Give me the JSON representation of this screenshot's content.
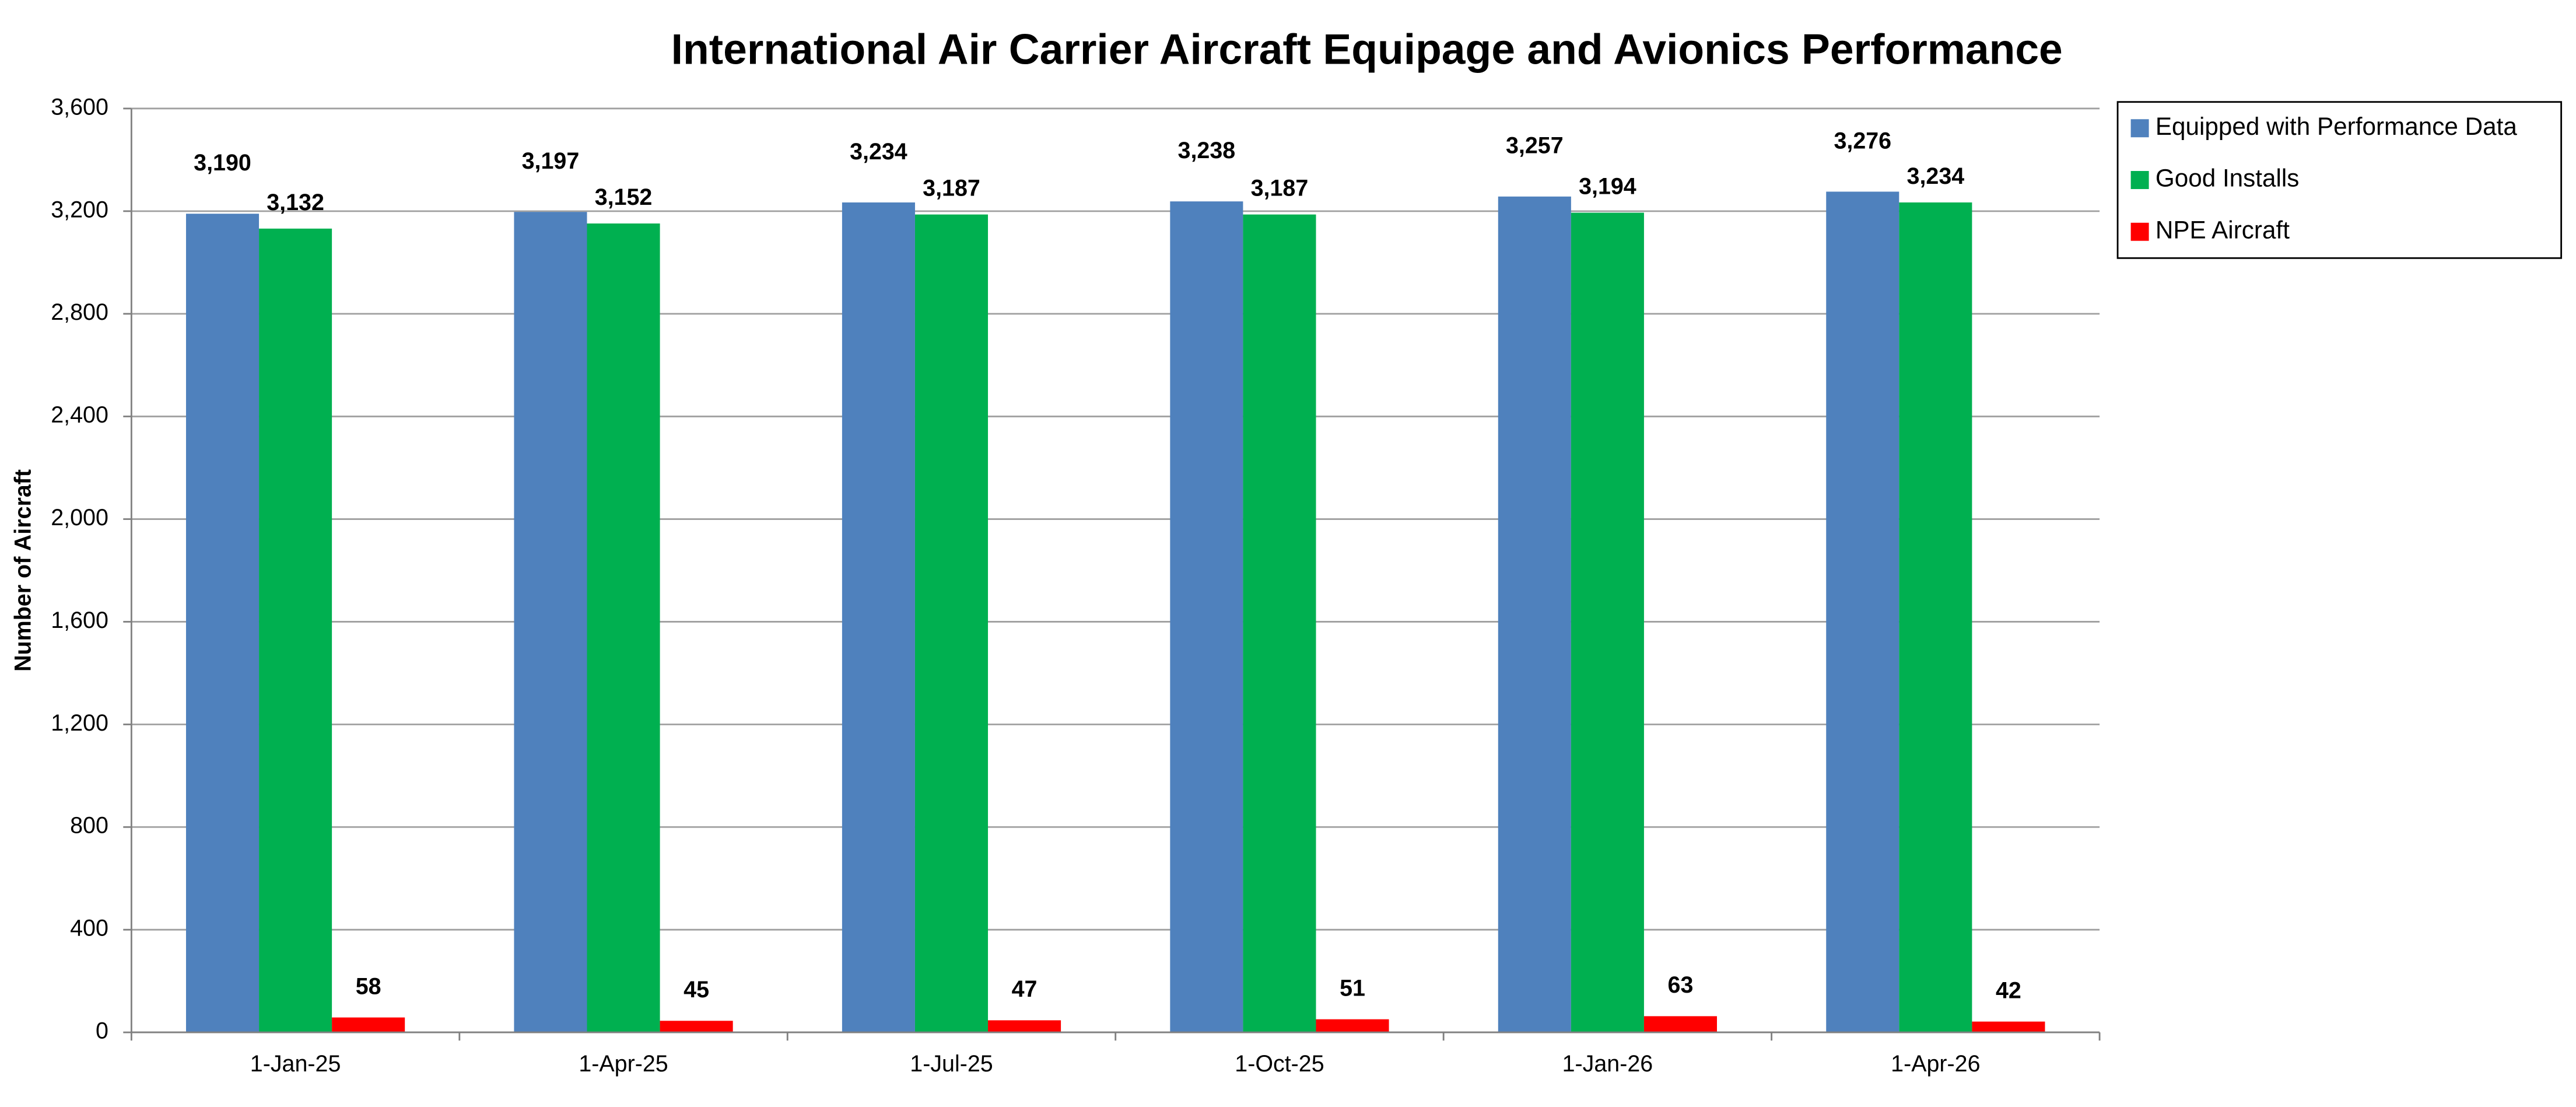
{
  "chart_data": {
    "type": "bar",
    "title": "International Air Carrier Aircraft Equipage and Avionics Performance",
    "y_label": "Number of Aircraft",
    "categories": [
      "1-Jan-25",
      "1-Apr-25",
      "1-Jul-25",
      "1-Oct-25",
      "1-Jan-26",
      "1-Apr-26"
    ],
    "series": [
      {
        "name": "Equipped with Performance Data",
        "color": "#4f81bd",
        "values": [
          3190,
          3197,
          3234,
          3238,
          3257,
          3276
        ],
        "value_labels": [
          "3,190",
          "3,197",
          "3,234",
          "3,238",
          "3,257",
          "3,276"
        ]
      },
      {
        "name": "Good Installs",
        "color": "#00b050",
        "values": [
          3132,
          3152,
          3187,
          3187,
          3194,
          3234
        ],
        "value_labels": [
          "3,132",
          "3,152",
          "3,187",
          "3,187",
          "3,194",
          "3,234"
        ]
      },
      {
        "name": "NPE Aircraft",
        "color": "#ff0000",
        "values": [
          58,
          45,
          47,
          51,
          63,
          42
        ]
      }
    ],
    "ylim": [
      0,
      3600
    ],
    "yticks": [
      0,
      400,
      800,
      {
        "value": 1200,
        "label": "1,200"
      },
      {
        "value": 1600,
        "label": "1,600"
      },
      {
        "value": 2000,
        "label": "2,000"
      },
      {
        "value": 2400,
        "label": "2,400"
      },
      {
        "value": 2800,
        "label": "2,800"
      },
      {
        "value": 3200,
        "label": "3,200"
      },
      {
        "value": 3600,
        "label": "3,600"
      }
    ],
    "grid": true,
    "legend": "right"
  }
}
